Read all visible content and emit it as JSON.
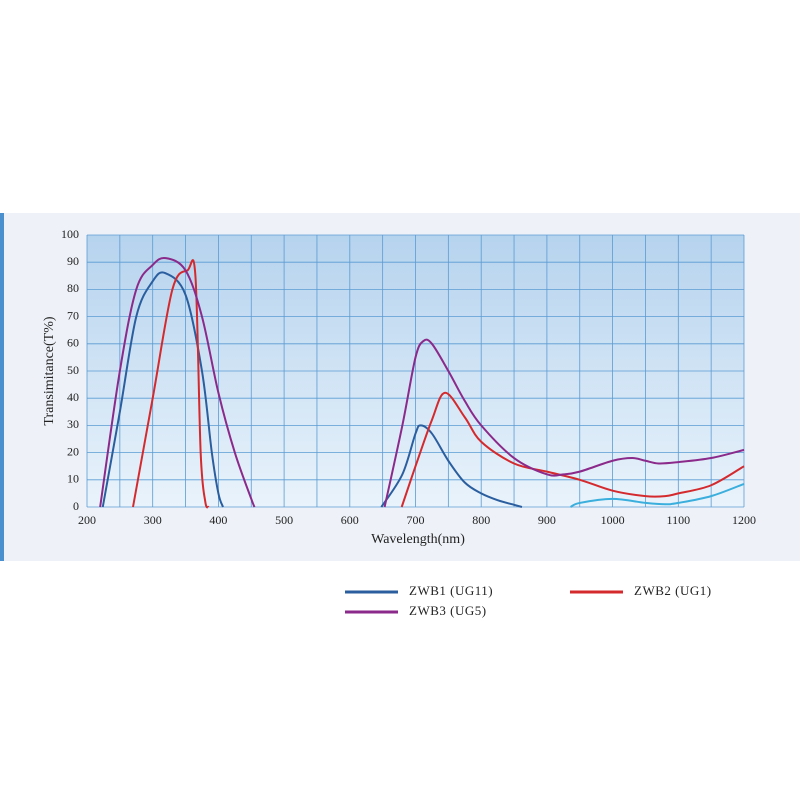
{
  "chart_data": {
    "type": "line",
    "x_label": "Wavelength(nm)",
    "y_label": "Transimitance(T%)",
    "xlim": [
      200,
      1200
    ],
    "ylim": [
      0,
      100
    ],
    "xticks": [
      200,
      300,
      400,
      500,
      600,
      700,
      800,
      900,
      1000,
      1100,
      1200
    ],
    "yticks": [
      0,
      10,
      20,
      30,
      40,
      50,
      60,
      70,
      80,
      90,
      100
    ],
    "xgrid": [
      200,
      250,
      300,
      350,
      400,
      450,
      500,
      550,
      600,
      650,
      700,
      750,
      800,
      850,
      900,
      950,
      1000,
      1050,
      1100,
      1150,
      1200
    ],
    "grid": true,
    "series": [
      {
        "name": "ZWB1 (UG11)",
        "color": "#2b5e9e",
        "x": [
          224,
          250,
          275,
          300,
          319,
          350,
          375,
          390,
          400,
          407,
          null,
          648,
          680,
          700,
          708,
          725,
          750,
          775,
          800,
          825,
          850,
          862
        ],
        "values": [
          0,
          35,
          70,
          83,
          86,
          78,
          50,
          20,
          5,
          0,
          null,
          0,
          12,
          27,
          30,
          27,
          17,
          9,
          5,
          2.5,
          0.8,
          0
        ]
      },
      {
        "name": "ZWB2 (UG1)",
        "color": "#d42a2e",
        "x": [
          270,
          300,
          330,
          353,
          365,
          373,
          380,
          385,
          null,
          679,
          700,
          725,
          745,
          775,
          800,
          850,
          900,
          950,
          1000,
          1050,
          1080,
          1100,
          1150,
          1200
        ],
        "values": [
          0,
          40,
          80,
          87,
          85,
          20,
          2,
          0,
          null,
          0,
          15,
          32,
          42,
          33,
          24,
          16,
          13,
          10,
          6,
          4,
          4,
          5,
          8,
          15
        ]
      },
      {
        "name": "ZWB3 (UG5)",
        "color": "#8b2a8a",
        "x": [
          220,
          250,
          275,
          300,
          320,
          350,
          375,
          400,
          425,
          450,
          455,
          null,
          653,
          680,
          700,
          712,
          725,
          750,
          775,
          800,
          850,
          900,
          925,
          950,
          1000,
          1030,
          1050,
          1070,
          1100,
          1150,
          1200
        ],
        "values": [
          0,
          50,
          80,
          89,
          91.5,
          87,
          70,
          42,
          20,
          3,
          0,
          null,
          0,
          30,
          55,
          61,
          60,
          50,
          39,
          30,
          18,
          12,
          12,
          13,
          17,
          18,
          17,
          16,
          16.5,
          18,
          21
        ]
      },
      {
        "color": "#3aaedc",
        "x": [
          936,
          950,
          1000,
          1050,
          1080,
          1100,
          1150,
          1200
        ],
        "values": [
          0,
          1.5,
          3,
          1.5,
          1,
          1.5,
          4,
          8.5
        ]
      }
    ]
  }
}
